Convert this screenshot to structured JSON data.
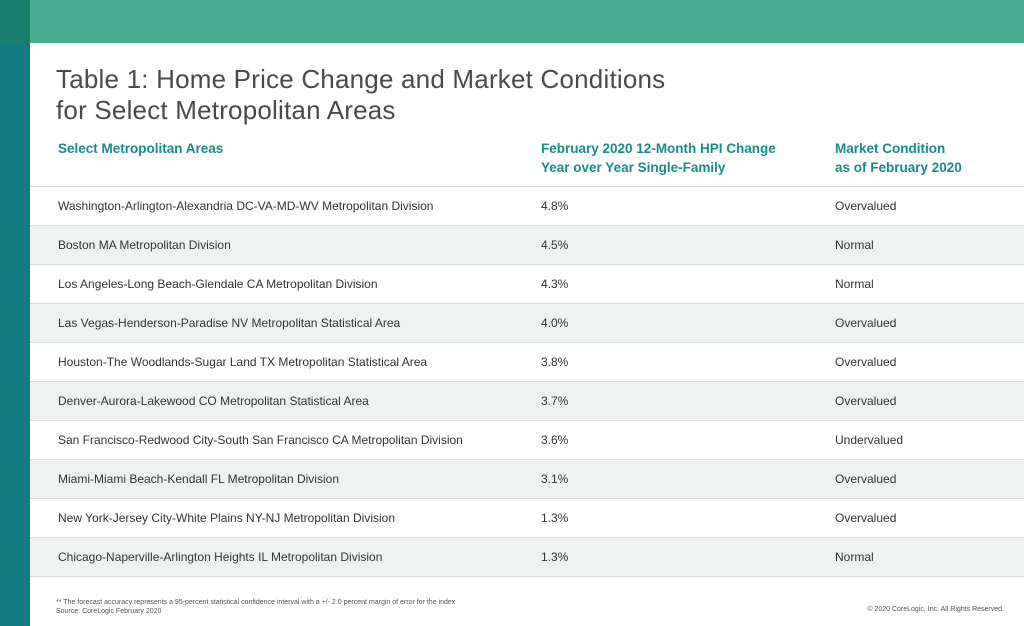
{
  "title_line1": "Table 1: Home Price Change and Market Conditions",
  "title_line2": "for Select Metropolitan Areas",
  "headers": {
    "area": "Select Metropolitan Areas",
    "hpi_line1": "February 2020 12-Month HPI Change",
    "hpi_line2": "Year over Year Single-Family",
    "cond_line1": "Market Condition",
    "cond_line2": "as of February 2020"
  },
  "rows": [
    {
      "area": "Washington-Arlington-Alexandria DC-VA-MD-WV Metropolitan Division",
      "hpi": "4.8%",
      "condition": "Overvalued"
    },
    {
      "area": "Boston MA Metropolitan Division",
      "hpi": "4.5%",
      "condition": "Normal"
    },
    {
      "area": "Los Angeles-Long Beach-Glendale CA Metropolitan Division",
      "hpi": "4.3%",
      "condition": "Normal"
    },
    {
      "area": "Las Vegas-Henderson-Paradise NV Metropolitan Statistical Area",
      "hpi": "4.0%",
      "condition": "Overvalued"
    },
    {
      "area": "Houston-The Woodlands-Sugar Land TX Metropolitan Statistical Area",
      "hpi": "3.8%",
      "condition": "Overvalued"
    },
    {
      "area": "Denver-Aurora-Lakewood CO Metropolitan Statistical Area",
      "hpi": "3.7%",
      "condition": "Overvalued"
    },
    {
      "area": "San Francisco-Redwood City-South San Francisco CA Metropolitan Division",
      "hpi": "3.6%",
      "condition": "Undervalued"
    },
    {
      "area": "Miami-Miami Beach-Kendall FL Metropolitan Division",
      "hpi": "3.1%",
      "condition": "Overvalued"
    },
    {
      "area": "New York-Jersey City-White Plains NY-NJ Metropolitan Division",
      "hpi": "1.3%",
      "condition": "Overvalued"
    },
    {
      "area": "Chicago-Naperville-Arlington Heights IL Metropolitan Division",
      "hpi": "1.3%",
      "condition": "Normal"
    }
  ],
  "footnote_line1": "** The forecast accuracy represents a 95-percent statistical confidence interval with a +/- 2.0 percent margin of error for the index",
  "footnote_line2": "Source: CoreLogic February 2020",
  "copyright": "© 2020 CoreLogic, Inc. All Rights Reserved.",
  "colors": {
    "top_bar": "#4aae93",
    "left_strip": "#147a82",
    "header_text": "#1a8a8a",
    "shaded_row": "#eef2f1"
  },
  "chart_data": {
    "type": "table",
    "columns": [
      "Select Metropolitan Areas",
      "February 2020 12-Month HPI Change Year over Year Single-Family",
      "Market Condition as of February 2020"
    ],
    "rows": [
      [
        "Washington-Arlington-Alexandria DC-VA-MD-WV Metropolitan Division",
        4.8,
        "Overvalued"
      ],
      [
        "Boston MA Metropolitan Division",
        4.5,
        "Normal"
      ],
      [
        "Los Angeles-Long Beach-Glendale CA Metropolitan Division",
        4.3,
        "Normal"
      ],
      [
        "Las Vegas-Henderson-Paradise NV Metropolitan Statistical Area",
        4.0,
        "Overvalued"
      ],
      [
        "Houston-The Woodlands-Sugar Land TX Metropolitan Statistical Area",
        3.8,
        "Overvalued"
      ],
      [
        "Denver-Aurora-Lakewood CO Metropolitan Statistical Area",
        3.7,
        "Overvalued"
      ],
      [
        "San Francisco-Redwood City-South San Francisco CA Metropolitan Division",
        3.6,
        "Undervalued"
      ],
      [
        "Miami-Miami Beach-Kendall FL Metropolitan Division",
        3.1,
        "Overvalued"
      ],
      [
        "New York-Jersey City-White Plains NY-NJ Metropolitan Division",
        1.3,
        "Overvalued"
      ],
      [
        "Chicago-Naperville-Arlington Heights IL Metropolitan Division",
        1.3,
        "Normal"
      ]
    ]
  }
}
